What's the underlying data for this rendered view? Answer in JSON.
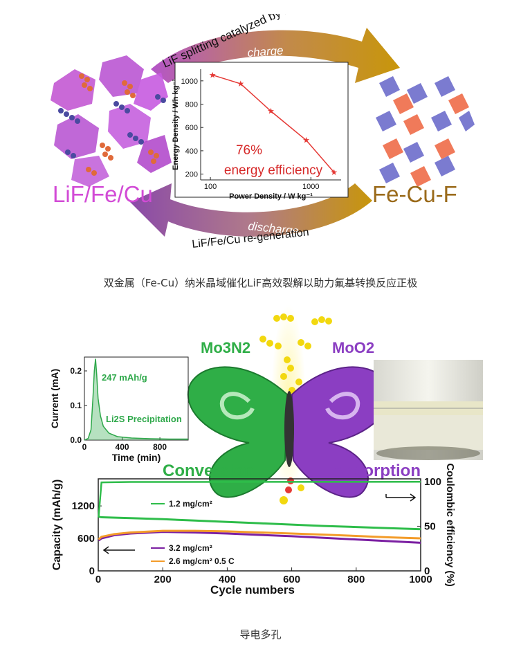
{
  "figure1": {
    "arrow_top_text": "LiF splitting catalyzed by metals",
    "charge_label": "charge",
    "discharge_label": "discharge",
    "arrow_bottom_text": "LiF/Fe/Cu re-generation",
    "left_material": "LiF/Fe/Cu",
    "right_material": "Fe-Cu-F",
    "efficiency_value": "76%",
    "efficiency_label": "energy efficiency"
  },
  "caption1": "双金属（Fe-Cu）纳米晶域催化LiF高效裂解以助力氟基转换反应正极",
  "figure2": {
    "left_species": "Mo3N2",
    "right_species": "MoO2",
    "conversion_label": "Conversion",
    "adsorption_label": "Adsorption",
    "inset_annotation_capacity": "247 mAh/g",
    "inset_annotation_li2s": "Li2S Precipitation",
    "legend": [
      "1.2  mg/cm²",
      "3.2  mg/cm²",
      "2.6  mg/cm² 0.5 C"
    ]
  },
  "caption2": "导电多孔",
  "chart_data": [
    {
      "type": "line",
      "xlabel": "Power Density / W kg⁻¹",
      "ylabel": "Energy Density / Wh kg⁻¹",
      "x_scale": "log",
      "x": [
        105,
        200,
        400,
        900,
        1700
      ],
      "y": [
        1050,
        975,
        740,
        490,
        215
      ],
      "xticks": [
        100,
        1000
      ],
      "yticks": [
        200,
        400,
        600,
        800,
        1000
      ],
      "xlim": [
        80,
        2000
      ],
      "ylim": [
        150,
        1100
      ],
      "color": "#e53935"
    },
    {
      "type": "line",
      "xlabel": "Time (min)",
      "ylabel": "Current (mA)",
      "xticks": [
        0,
        400,
        800
      ],
      "yticks": [
        0.0,
        0.1,
        0.2
      ],
      "xlim": [
        0,
        1100
      ],
      "ylim": [
        0,
        0.24
      ],
      "x": [
        0,
        40,
        70,
        90,
        105,
        118,
        130,
        145,
        170,
        200,
        260,
        350,
        500,
        700,
        900,
        1100
      ],
      "y": [
        0,
        0.005,
        0.03,
        0.12,
        0.2,
        0.235,
        0.19,
        0.12,
        0.07,
        0.04,
        0.02,
        0.01,
        0.006,
        0.004,
        0.003,
        0.003
      ],
      "color": "#2ea84a"
    },
    {
      "type": "line",
      "xlabel": "Cycle numbers",
      "ylabel": "Capacity (mAh/g)",
      "y2label": "Coulombic efficiency (%)",
      "xticks": [
        0,
        200,
        400,
        600,
        800,
        1000
      ],
      "yticks": [
        0,
        600,
        1200
      ],
      "y2ticks": [
        0,
        50,
        100
      ],
      "xlim": [
        0,
        1000
      ],
      "ylim": [
        0,
        1700
      ],
      "y2lim": [
        0,
        103
      ],
      "series": [
        {
          "name": "1.2  mg/cm²",
          "color": "#2ebd4a",
          "x": [
            1,
            10,
            100,
            200,
            300,
            400,
            500,
            600,
            700,
            800,
            900,
            1000
          ],
          "y": [
            1000,
            990,
            975,
            955,
            930,
            905,
            880,
            855,
            830,
            810,
            790,
            770
          ]
        },
        {
          "name": "3.2  mg/cm²",
          "color": "#7b1fa2",
          "x": [
            1,
            10,
            50,
            100,
            200,
            300,
            400,
            500,
            600,
            700,
            800,
            900,
            1000
          ],
          "y": [
            560,
            600,
            660,
            690,
            720,
            710,
            690,
            665,
            640,
            610,
            580,
            550,
            520
          ]
        },
        {
          "name": "2.6  mg/cm² 0.5 C",
          "color": "#f39c2a",
          "x": [
            1,
            10,
            50,
            100,
            200,
            300,
            400,
            500,
            600,
            700,
            800,
            900,
            1000
          ],
          "y": [
            580,
            630,
            680,
            710,
            740,
            740,
            730,
            710,
            690,
            670,
            645,
            620,
            600
          ]
        },
        {
          "name": "Coulombic efficiency",
          "color": "#2ebd4a",
          "axis": "right",
          "x": [
            1,
            10,
            100,
            500,
            1000
          ],
          "y": [
            60,
            99,
            99.5,
            99.6,
            99.7
          ]
        }
      ]
    }
  ]
}
